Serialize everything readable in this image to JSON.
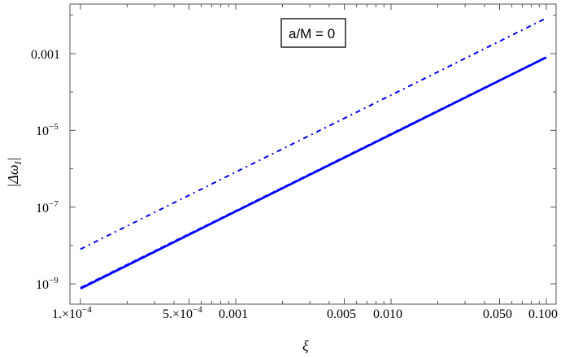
{
  "chart_data": {
    "type": "line",
    "title": "",
    "annotation": "a/M = 0",
    "xlabel": "ξ",
    "ylabel": "|Δω_I|",
    "xscale": "log",
    "yscale": "log",
    "xlim": [
      9e-05,
      0.11
    ],
    "ylim": [
      4e-10,
      0.02
    ],
    "grid": false,
    "legend": {
      "position": "top-center",
      "entries": [
        "a/M = 0"
      ]
    },
    "x_ticks": [
      {
        "value": 0.0001,
        "label": "1.×10^-4"
      },
      {
        "value": 0.0005,
        "label": "5.×10^-4"
      },
      {
        "value": 0.001,
        "label": "0.001"
      },
      {
        "value": 0.005,
        "label": "0.005"
      },
      {
        "value": 0.01,
        "label": "0.010"
      },
      {
        "value": 0.05,
        "label": "0.050"
      },
      {
        "value": 0.1,
        "label": "0.100"
      }
    ],
    "y_ticks": [
      {
        "value": 1e-09,
        "label": "10^-9"
      },
      {
        "value": 1e-07,
        "label": "10^-7"
      },
      {
        "value": 1e-05,
        "label": "10^-5"
      },
      {
        "value": 0.001,
        "label": "0.001"
      }
    ],
    "series": [
      {
        "name": "dash-dot",
        "style": "dashdot",
        "color": "#0000ff",
        "x": [
          0.0001,
          0.001,
          0.01,
          0.1
        ],
        "y": [
          8e-09,
          8.2e-07,
          8.3e-05,
          0.0085
        ]
      },
      {
        "name": "solid",
        "style": "solid",
        "color": "#0000ff",
        "x": [
          0.0001,
          0.001,
          0.01,
          0.1
        ],
        "y": [
          7.5e-10,
          7.7e-08,
          7.8e-06,
          0.0008
        ]
      },
      {
        "name": "dashed",
        "style": "dashed",
        "color": "#0000ff",
        "x": [
          0.0001,
          0.001,
          0.01,
          0.1
        ],
        "y": [
          8e-10,
          8.1e-08,
          8.2e-06,
          0.00083
        ]
      }
    ]
  },
  "labels": {
    "xlabel": "ξ",
    "ylabel_pre": "|",
    "ylabel_delta": "Δω",
    "ylabel_sub": "I",
    "ylabel_post": "|",
    "legend": "a/M = 0",
    "xt": [
      "1.×10",
      "5.×10",
      "0.001",
      "0.005",
      "0.010",
      "0.050",
      "0.100"
    ],
    "xt_exp": "−4",
    "yt": [
      "0.001",
      "10",
      "10",
      "10"
    ],
    "yt_exp": [
      "",
      "−5",
      "−7",
      "−9"
    ]
  }
}
